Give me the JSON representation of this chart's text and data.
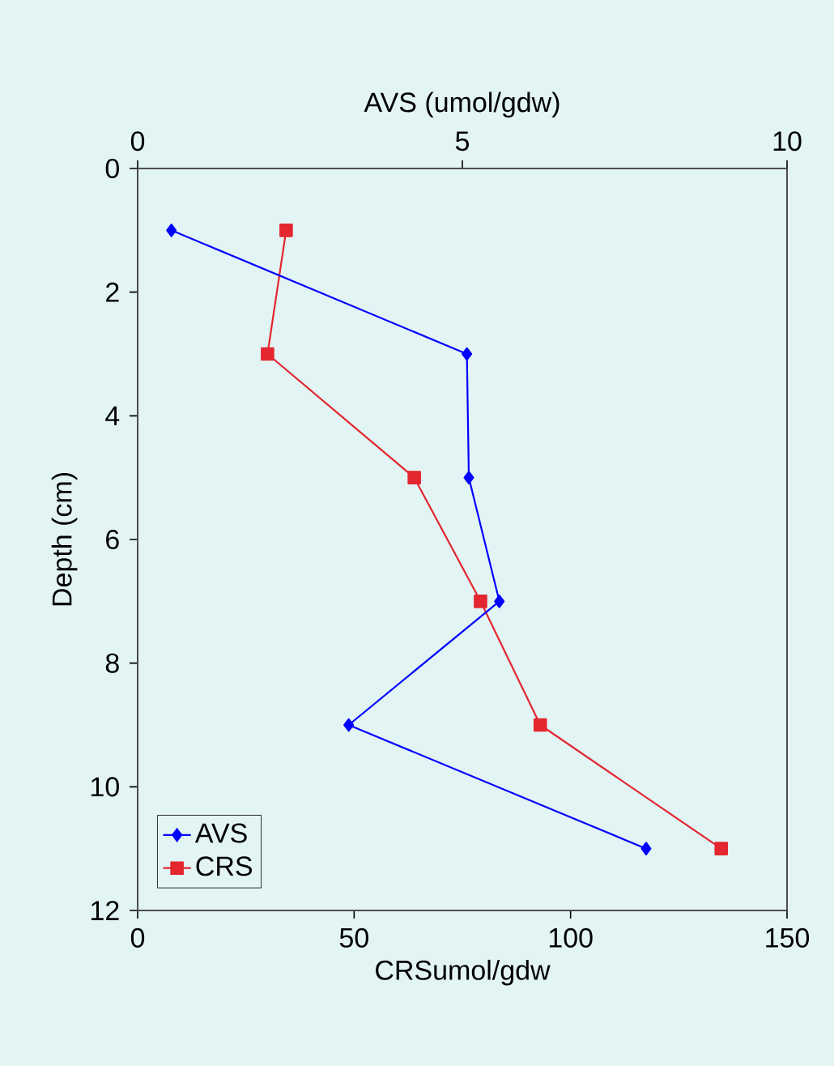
{
  "chart_data": {
    "type": "line",
    "xlabel": "CRSumol/gdw",
    "x2label": "AVS (umol/gdw)",
    "ylabel": "Depth (cm)",
    "xlim": [
      0,
      150
    ],
    "xticks": [
      0,
      50,
      100,
      150
    ],
    "x2lim": [
      0,
      10
    ],
    "x2ticks": [
      0,
      5,
      10
    ],
    "ylim": [
      12,
      0
    ],
    "yticks": [
      0,
      2,
      4,
      6,
      8,
      10,
      12
    ],
    "legend": "bottom left",
    "grid": false,
    "line_style": "solid",
    "series": [
      {
        "name": "AVS",
        "color": "#0000ff",
        "marker": "diamond",
        "axis": "x2",
        "x": [
          0.52,
          5.07,
          5.1,
          5.57,
          3.25,
          7.83
        ],
        "values": [
          1,
          3,
          5,
          7,
          9,
          11
        ]
      },
      {
        "name": "CRS",
        "color": "#e3262f",
        "marker": "square",
        "x": [
          34.3,
          30,
          63.9,
          79.2,
          93,
          134.8
        ],
        "values": [
          1,
          3,
          5,
          7,
          9,
          11
        ]
      }
    ]
  }
}
